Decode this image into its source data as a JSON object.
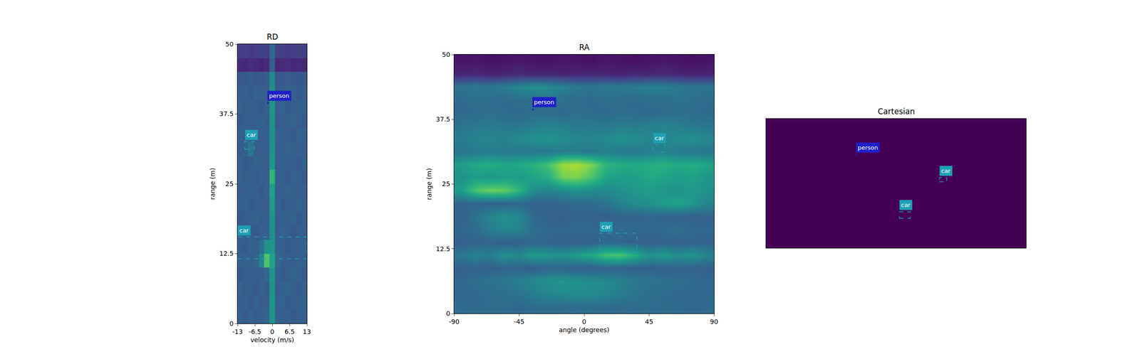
{
  "chart_data": [
    {
      "type": "heatmap",
      "title": "RD",
      "x_label": "velocity (m/s)",
      "y_label": "range (m)",
      "xlim": [
        -13,
        13
      ],
      "ylim": [
        0,
        50
      ],
      "xticks": [
        -13,
        -6.5,
        0,
        6.5,
        13
      ],
      "yticks": [
        0,
        12.5,
        25,
        37.5,
        50
      ],
      "zlim": [
        0,
        1
      ],
      "x": [
        -12,
        -10,
        -8,
        -6,
        -4,
        -2,
        0,
        2,
        4,
        6,
        8,
        10,
        12
      ],
      "y": [
        1.25,
        3.75,
        6.25,
        8.75,
        11.25,
        13.75,
        16.25,
        18.75,
        21.25,
        23.75,
        26.25,
        28.75,
        31.25,
        33.75,
        36.25,
        38.75,
        41.25,
        43.75,
        46.25,
        48.75
      ],
      "cells": [
        [
          0.3,
          0.28,
          0.31,
          0.29,
          0.3,
          0.32,
          0.5,
          0.31,
          0.29,
          0.3,
          0.28,
          0.3,
          0.29
        ],
        [
          0.29,
          0.3,
          0.28,
          0.31,
          0.29,
          0.3,
          0.52,
          0.3,
          0.31,
          0.28,
          0.3,
          0.29,
          0.31
        ],
        [
          0.31,
          0.29,
          0.3,
          0.28,
          0.31,
          0.29,
          0.5,
          0.29,
          0.3,
          0.31,
          0.29,
          0.28,
          0.3
        ],
        [
          0.28,
          0.3,
          0.29,
          0.3,
          0.3,
          0.33,
          0.51,
          0.3,
          0.28,
          0.29,
          0.31,
          0.3,
          0.28
        ],
        [
          0.3,
          0.31,
          0.3,
          0.32,
          0.45,
          0.72,
          0.58,
          0.33,
          0.3,
          0.3,
          0.29,
          0.31,
          0.3
        ],
        [
          0.29,
          0.28,
          0.31,
          0.3,
          0.36,
          0.5,
          0.52,
          0.31,
          0.29,
          0.28,
          0.3,
          0.29,
          0.31
        ],
        [
          0.31,
          0.3,
          0.29,
          0.28,
          0.3,
          0.31,
          0.49,
          0.3,
          0.31,
          0.3,
          0.28,
          0.3,
          0.29
        ],
        [
          0.28,
          0.29,
          0.3,
          0.31,
          0.29,
          0.3,
          0.5,
          0.29,
          0.3,
          0.29,
          0.31,
          0.28,
          0.3
        ],
        [
          0.3,
          0.31,
          0.28,
          0.29,
          0.3,
          0.29,
          0.53,
          0.31,
          0.28,
          0.3,
          0.29,
          0.31,
          0.29
        ],
        [
          0.29,
          0.3,
          0.31,
          0.3,
          0.28,
          0.31,
          0.56,
          0.3,
          0.29,
          0.31,
          0.3,
          0.29,
          0.3
        ],
        [
          0.31,
          0.29,
          0.3,
          0.29,
          0.31,
          0.3,
          0.65,
          0.31,
          0.3,
          0.28,
          0.31,
          0.3,
          0.28
        ],
        [
          0.3,
          0.28,
          0.29,
          0.31,
          0.3,
          0.29,
          0.52,
          0.29,
          0.31,
          0.3,
          0.29,
          0.28,
          0.31
        ],
        [
          0.29,
          0.31,
          0.4,
          0.3,
          0.29,
          0.3,
          0.5,
          0.3,
          0.29,
          0.31,
          0.3,
          0.3,
          0.29
        ],
        [
          0.3,
          0.29,
          0.31,
          0.28,
          0.3,
          0.31,
          0.49,
          0.31,
          0.3,
          0.29,
          0.28,
          0.31,
          0.3
        ],
        [
          0.28,
          0.3,
          0.29,
          0.3,
          0.31,
          0.29,
          0.5,
          0.28,
          0.29,
          0.3,
          0.31,
          0.29,
          0.28
        ],
        [
          0.31,
          0.29,
          0.3,
          0.29,
          0.28,
          0.3,
          0.51,
          0.3,
          0.31,
          0.28,
          0.29,
          0.3,
          0.31
        ],
        [
          0.29,
          0.3,
          0.28,
          0.31,
          0.3,
          0.29,
          0.5,
          0.29,
          0.3,
          0.31,
          0.3,
          0.28,
          0.29
        ],
        [
          0.27,
          0.28,
          0.29,
          0.27,
          0.28,
          0.29,
          0.46,
          0.28,
          0.27,
          0.29,
          0.28,
          0.27,
          0.28
        ],
        [
          0.12,
          0.11,
          0.13,
          0.12,
          0.1,
          0.12,
          0.3,
          0.11,
          0.12,
          0.13,
          0.11,
          0.12,
          0.11
        ],
        [
          0.18,
          0.19,
          0.17,
          0.18,
          0.19,
          0.18,
          0.34,
          0.19,
          0.18,
          0.17,
          0.18,
          0.19,
          0.18
        ]
      ],
      "boxes": [
        {
          "label": "person",
          "color": "#1f1fc8",
          "x": [
            -1.8,
            -1.5
          ],
          "y": [
            39.4,
            39.6
          ]
        },
        {
          "label": "car",
          "color": "#1fa0b4",
          "x": [
            -10.3,
            -6.7
          ],
          "y": [
            31.2,
            32.6
          ]
        },
        {
          "label": "car",
          "color": "#1fa0b4",
          "x": [
            -13,
            13
          ],
          "y": [
            11.6,
            15.5
          ]
        }
      ]
    },
    {
      "type": "heatmap",
      "title": "RA",
      "x_label": "angle (degrees)",
      "y_label": "range (m)",
      "xlim": [
        -90,
        90
      ],
      "ylim": [
        0,
        50
      ],
      "xticks": [
        -90,
        -45,
        0,
        45,
        90
      ],
      "yticks": [
        0,
        12.5,
        25,
        37.5,
        50
      ],
      "zlim": [
        0,
        1
      ],
      "x": [
        -85,
        -75,
        -65,
        -55,
        -45,
        -35,
        -25,
        -15,
        -5,
        5,
        15,
        25,
        35,
        45,
        55,
        65,
        75,
        85
      ],
      "y": [
        1.25,
        3.75,
        6.25,
        8.75,
        11.25,
        13.75,
        16.25,
        18.75,
        21.25,
        23.75,
        26.25,
        28.75,
        31.25,
        33.75,
        36.25,
        38.75,
        41.25,
        43.75,
        46.25,
        48.75
      ],
      "cells": [
        [
          0.35,
          0.34,
          0.36,
          0.35,
          0.33,
          0.35,
          0.36,
          0.34,
          0.35,
          0.36,
          0.35,
          0.34,
          0.35,
          0.36,
          0.34,
          0.35,
          0.33,
          0.35
        ],
        [
          0.33,
          0.34,
          0.35,
          0.36,
          0.38,
          0.42,
          0.45,
          0.47,
          0.48,
          0.47,
          0.45,
          0.42,
          0.38,
          0.36,
          0.35,
          0.34,
          0.33,
          0.34
        ],
        [
          0.34,
          0.36,
          0.38,
          0.4,
          0.43,
          0.47,
          0.5,
          0.52,
          0.5,
          0.48,
          0.47,
          0.44,
          0.4,
          0.38,
          0.37,
          0.36,
          0.35,
          0.34
        ],
        [
          0.3,
          0.31,
          0.3,
          0.32,
          0.31,
          0.3,
          0.33,
          0.32,
          0.31,
          0.3,
          0.32,
          0.31,
          0.3,
          0.31,
          0.3,
          0.32,
          0.31,
          0.3
        ],
        [
          0.4,
          0.45,
          0.42,
          0.5,
          0.46,
          0.55,
          0.52,
          0.5,
          0.55,
          0.6,
          0.7,
          0.72,
          0.62,
          0.5,
          0.55,
          0.48,
          0.52,
          0.45
        ],
        [
          0.3,
          0.31,
          0.32,
          0.3,
          0.31,
          0.33,
          0.32,
          0.31,
          0.3,
          0.31,
          0.34,
          0.33,
          0.31,
          0.3,
          0.31,
          0.3,
          0.32,
          0.31
        ],
        [
          0.33,
          0.35,
          0.42,
          0.46,
          0.44,
          0.36,
          0.34,
          0.33,
          0.35,
          0.34,
          0.33,
          0.35,
          0.34,
          0.33,
          0.35,
          0.36,
          0.34,
          0.33
        ],
        [
          0.31,
          0.38,
          0.45,
          0.5,
          0.46,
          0.34,
          0.31,
          0.3,
          0.32,
          0.31,
          0.3,
          0.32,
          0.31,
          0.33,
          0.32,
          0.31,
          0.3,
          0.31
        ],
        [
          0.32,
          0.33,
          0.31,
          0.32,
          0.33,
          0.31,
          0.32,
          0.33,
          0.34,
          0.35,
          0.38,
          0.44,
          0.48,
          0.5,
          0.55,
          0.58,
          0.52,
          0.45
        ],
        [
          0.55,
          0.72,
          0.78,
          0.76,
          0.65,
          0.48,
          0.45,
          0.47,
          0.5,
          0.48,
          0.46,
          0.5,
          0.52,
          0.55,
          0.52,
          0.5,
          0.54,
          0.5
        ],
        [
          0.5,
          0.55,
          0.52,
          0.56,
          0.54,
          0.58,
          0.62,
          0.78,
          0.8,
          0.72,
          0.58,
          0.55,
          0.56,
          0.6,
          0.58,
          0.55,
          0.57,
          0.52
        ],
        [
          0.55,
          0.6,
          0.62,
          0.58,
          0.6,
          0.64,
          0.7,
          0.85,
          0.88,
          0.8,
          0.65,
          0.62,
          0.6,
          0.62,
          0.64,
          0.6,
          0.62,
          0.58
        ],
        [
          0.38,
          0.4,
          0.42,
          0.4,
          0.41,
          0.39,
          0.4,
          0.42,
          0.41,
          0.4,
          0.43,
          0.41,
          0.4,
          0.42,
          0.44,
          0.41,
          0.4,
          0.39
        ],
        [
          0.42,
          0.45,
          0.46,
          0.44,
          0.47,
          0.5,
          0.52,
          0.48,
          0.46,
          0.45,
          0.47,
          0.5,
          0.49,
          0.46,
          0.45,
          0.48,
          0.5,
          0.46
        ],
        [
          0.38,
          0.4,
          0.41,
          0.4,
          0.39,
          0.42,
          0.44,
          0.43,
          0.4,
          0.41,
          0.4,
          0.42,
          0.41,
          0.43,
          0.45,
          0.42,
          0.4,
          0.39
        ],
        [
          0.34,
          0.35,
          0.36,
          0.35,
          0.34,
          0.36,
          0.35,
          0.34,
          0.36,
          0.35,
          0.34,
          0.36,
          0.35,
          0.34,
          0.35,
          0.36,
          0.35,
          0.34
        ],
        [
          0.34,
          0.36,
          0.35,
          0.34,
          0.36,
          0.35,
          0.38,
          0.36,
          0.35,
          0.34,
          0.36,
          0.35,
          0.34,
          0.36,
          0.35,
          0.38,
          0.36,
          0.35
        ],
        [
          0.38,
          0.4,
          0.39,
          0.42,
          0.46,
          0.5,
          0.48,
          0.44,
          0.4,
          0.39,
          0.41,
          0.4,
          0.42,
          0.44,
          0.43,
          0.4,
          0.39,
          0.38
        ],
        [
          0.1,
          0.11,
          0.09,
          0.1,
          0.12,
          0.1,
          0.11,
          0.09,
          0.1,
          0.11,
          0.1,
          0.09,
          0.11,
          0.1,
          0.12,
          0.1,
          0.09,
          0.1
        ],
        [
          0.05,
          0.06,
          0.04,
          0.05,
          0.06,
          0.05,
          0.04,
          0.06,
          0.05,
          0.04,
          0.06,
          0.05,
          0.04,
          0.05,
          0.06,
          0.05,
          0.04,
          0.05
        ]
      ],
      "boxes": [
        {
          "label": "person",
          "color": "#1f1fc8",
          "x": [
            -36,
            -35
          ],
          "y": [
            39.3,
            39.5
          ]
        },
        {
          "label": "car",
          "color": "#1fa0b4",
          "x": [
            47.6,
            55.7
          ],
          "y": [
            31.2,
            32.6
          ]
        },
        {
          "label": "car",
          "color": "#1fa0b4",
          "x": [
            10.8,
            36.6
          ],
          "y": [
            11.8,
            15.5
          ]
        }
      ]
    },
    {
      "type": "heatmap",
      "title": "Cartesian",
      "tick_labels": false,
      "xlim": [
        -50,
        50
      ],
      "ylim": [
        0,
        50
      ],
      "xticks": [],
      "yticks": [],
      "zlim": [
        0,
        1
      ],
      "x": [
        -50,
        50
      ],
      "y": [
        0,
        50
      ],
      "cells": [
        [
          0,
          0
        ],
        [
          0,
          0
        ]
      ],
      "boxes": [
        {
          "label": "person",
          "color": "#1f1fc8",
          "x": [
            -15.5,
            -15.2
          ],
          "y": [
            36.0,
            36.2
          ]
        },
        {
          "label": "car",
          "color": "#1fa0b4",
          "x": [
            16.7,
            19.5
          ],
          "y": [
            25.6,
            27.2
          ]
        },
        {
          "label": "car",
          "color": "#1fa0b4",
          "x": [
            1.3,
            5.5
          ],
          "y": [
            11.5,
            14.0
          ]
        }
      ]
    }
  ]
}
